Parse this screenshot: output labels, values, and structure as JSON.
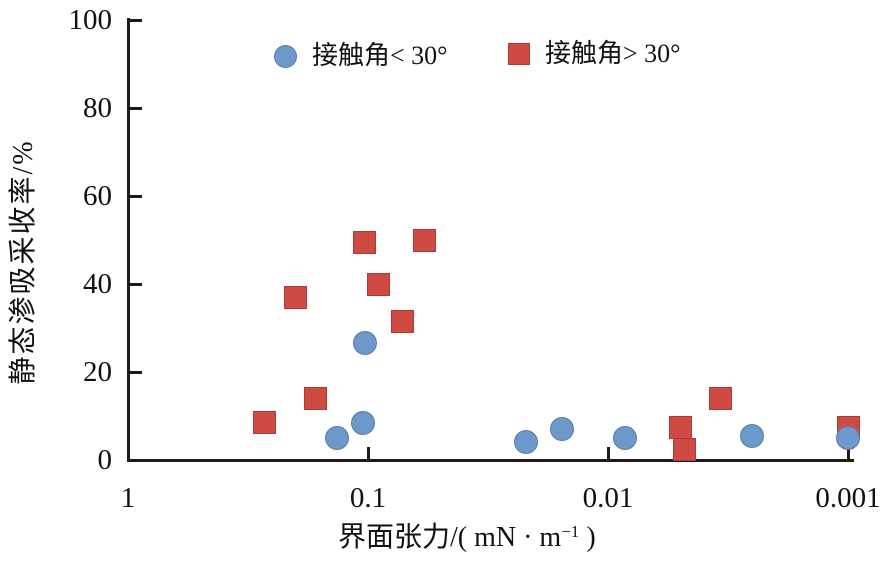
{
  "chart_data": {
    "type": "scatter",
    "title": "",
    "xlabel": "界面张力/(mN·m⁻¹)",
    "xlabel_parts": {
      "prefix": "界面张力/( mN · m",
      "sup": "−1",
      "suffix": " )"
    },
    "ylabel": "静态渗吸采收率/%",
    "x_scale": "log10-reversed",
    "xlim": [
      1,
      0.001
    ],
    "ylim": [
      0,
      100
    ],
    "x_ticks": [
      1,
      0.1,
      0.01,
      0.001
    ],
    "x_tick_labels": [
      "1",
      "0.1",
      "0.01",
      "0.001"
    ],
    "y_ticks": [
      0,
      20,
      40,
      60,
      80,
      100
    ],
    "y_tick_labels": [
      "0",
      "20",
      "40",
      "60",
      "80",
      "100"
    ],
    "grid": false,
    "legend_position": "top-inside",
    "axis_color": "#1c1c1c",
    "series": [
      {
        "name": "接触角< 30°",
        "marker": "circle",
        "color": "#6D98CB",
        "points": [
          [
            0.135,
            5
          ],
          [
            0.103,
            26.5
          ],
          [
            0.105,
            8.5
          ],
          [
            0.022,
            4
          ],
          [
            0.0155,
            7
          ],
          [
            0.0085,
            5
          ],
          [
            0.0025,
            5.5
          ],
          [
            0.001,
            5
          ]
        ]
      },
      {
        "name": "接触角> 30°",
        "marker": "square",
        "color": "#CF4A42",
        "points": [
          [
            0.27,
            8.5
          ],
          [
            0.2,
            37
          ],
          [
            0.165,
            14
          ],
          [
            0.103,
            49.5
          ],
          [
            0.09,
            40
          ],
          [
            0.072,
            31.5
          ],
          [
            0.058,
            50
          ],
          [
            0.005,
            7.5
          ],
          [
            0.0048,
            2.5
          ],
          [
            0.0034,
            14
          ],
          [
            0.001,
            7.5
          ]
        ]
      }
    ]
  }
}
